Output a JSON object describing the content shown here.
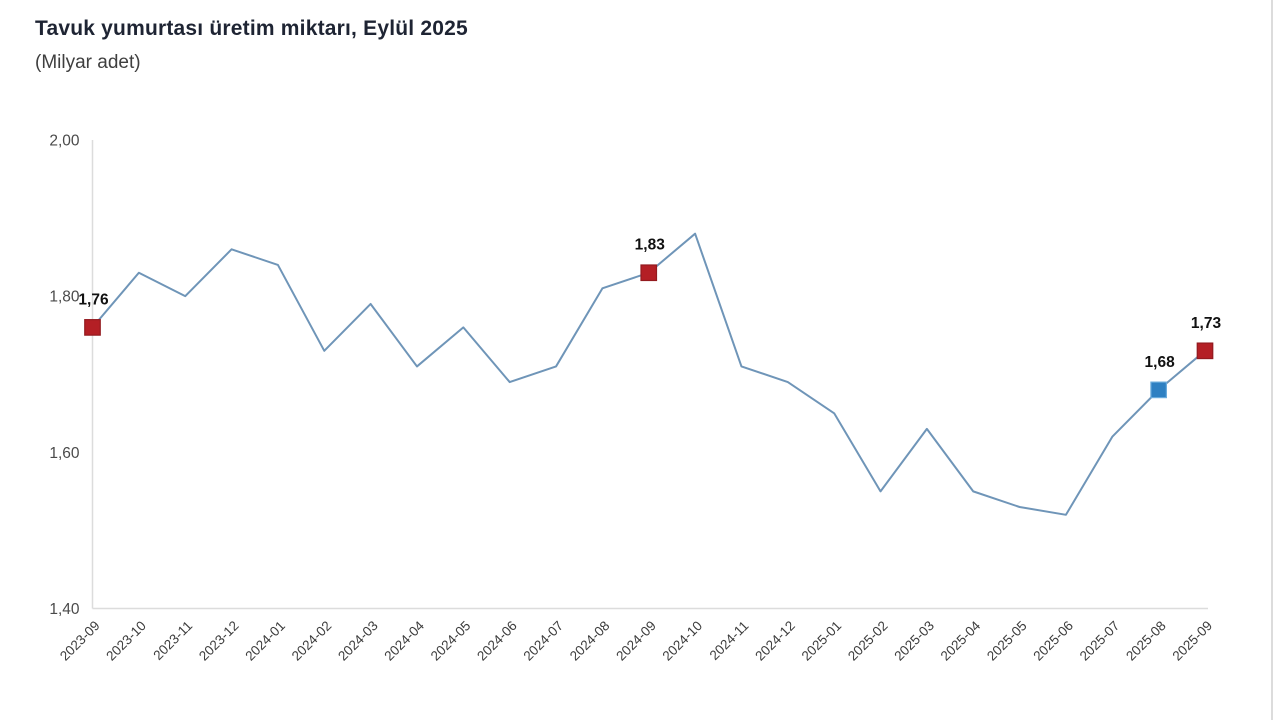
{
  "header": {
    "title": "Tavuk yumurtası üretim miktarı, Eylül 2025",
    "subtitle": "(Milyar adet)"
  },
  "chart_data": {
    "type": "line",
    "title": "Tavuk yumurtası üretim miktarı, Eylül 2025",
    "subtitle": "(Milyar adet)",
    "xlabel": "",
    "ylabel": "",
    "ylim": [
      1.4,
      2.0
    ],
    "grid": "off",
    "legend": "none",
    "categories": [
      "2023-09",
      "2023-10",
      "2023-11",
      "2023-12",
      "2024-01",
      "2024-02",
      "2024-03",
      "2024-04",
      "2024-05",
      "2024-06",
      "2024-07",
      "2024-08",
      "2024-09",
      "2024-10",
      "2024-11",
      "2024-12",
      "2025-01",
      "2025-02",
      "2025-03",
      "2025-04",
      "2025-05",
      "2025-06",
      "2025-07",
      "2025-08",
      "2025-09"
    ],
    "values": [
      1.76,
      1.83,
      1.8,
      1.86,
      1.84,
      1.73,
      1.79,
      1.71,
      1.76,
      1.69,
      1.71,
      1.81,
      1.83,
      1.88,
      1.71,
      1.69,
      1.65,
      1.55,
      1.63,
      1.55,
      1.53,
      1.52,
      1.62,
      1.68,
      1.73
    ],
    "y_ticks": [
      {
        "value": 1.4,
        "label": "1,40"
      },
      {
        "value": 1.6,
        "label": "1,60"
      },
      {
        "value": 1.8,
        "label": "1,80"
      },
      {
        "value": 2.0,
        "label": "2,00"
      }
    ],
    "highlights": [
      {
        "index": 0,
        "category": "2023-09",
        "value": 1.76,
        "label": "1,76",
        "color": "#b41f25",
        "border": "#931a1f"
      },
      {
        "index": 12,
        "category": "2024-09",
        "value": 1.83,
        "label": "1,83",
        "color": "#b41f25",
        "border": "#931a1f"
      },
      {
        "index": 23,
        "category": "2025-08",
        "value": 1.68,
        "label": "1,68",
        "color": "#2e80c2",
        "border": "#6aabdc"
      },
      {
        "index": 24,
        "category": "2025-09",
        "value": 1.73,
        "label": "1,73",
        "color": "#b41f25",
        "border": "#931a1f"
      }
    ],
    "colors": {
      "line": "#6f95b8",
      "axis": "#dcdcdc",
      "tick_text": "#4a4a4a",
      "x_tick_text": "#3c3c3c",
      "value_label_text": "#111111",
      "title_text": "#1e2433"
    }
  }
}
